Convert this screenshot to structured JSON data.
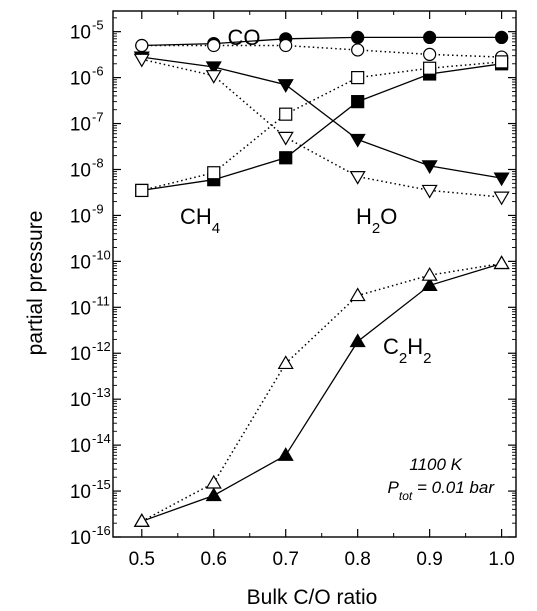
{
  "chart_data": {
    "type": "line",
    "xlabel": "Bulk C/O ratio",
    "ylabel": "partial pressure",
    "y_scale": "log",
    "xlim": [
      0.46,
      1.02
    ],
    "ylim_exponent": [
      -16,
      -4.55
    ],
    "x_ticks": [
      "0.5",
      "0.6",
      "0.7",
      "0.8",
      "0.9",
      "1.0"
    ],
    "y_tick_exponents": [
      "-5",
      "-6",
      "-7",
      "-8",
      "-9",
      "-10",
      "-11",
      "-12",
      "-13",
      "-14",
      "-15",
      "-16"
    ],
    "grid": false,
    "annotations": {
      "temperature": "1100 K",
      "pressure_symbol": "P",
      "pressure_subscript": "tot",
      "pressure_value": " = 0.01 bar"
    },
    "x": [
      0.5,
      0.6,
      0.7,
      0.8,
      0.9,
      1.0
    ],
    "series": [
      {
        "label_main": "CO",
        "label_sub": "",
        "label_tail": "",
        "marker": "circle",
        "filled": true,
        "line": "solid",
        "values": [
          5e-06,
          5.5e-06,
          7e-06,
          7.5e-06,
          7.5e-06,
          7.5e-06
        ]
      },
      {
        "label_main": "",
        "label_sub": "",
        "label_tail": "",
        "marker": "circle",
        "filled": false,
        "line": "dotted",
        "values": [
          5e-06,
          5e-06,
          5e-06,
          4e-06,
          3.2e-06,
          2.8e-06
        ]
      },
      {
        "label_main": "CH",
        "label_sub": "4",
        "label_tail": "",
        "marker": "square",
        "filled": true,
        "line": "solid",
        "values": [
          3.5e-09,
          6e-09,
          1.8e-08,
          3e-07,
          1.2e-06,
          2e-06
        ]
      },
      {
        "label_main": "",
        "label_sub": "",
        "label_tail": "",
        "marker": "square",
        "filled": false,
        "line": "dotted",
        "values": [
          3.5e-09,
          8.5e-09,
          1.6e-07,
          1e-06,
          1.6e-06,
          2.2e-06
        ]
      },
      {
        "label_main": "H",
        "label_sub": "2",
        "label_tail": "O",
        "marker": "triangle-down",
        "filled": true,
        "line": "solid",
        "values": [
          2.8e-06,
          1.7e-06,
          7e-07,
          4.5e-08,
          1.2e-08,
          6.5e-09
        ]
      },
      {
        "label_main": "",
        "label_sub": "",
        "label_tail": "",
        "marker": "triangle-down",
        "filled": false,
        "line": "dotted",
        "values": [
          2.5e-06,
          1.1e-06,
          5e-08,
          7e-09,
          3.5e-09,
          2.5e-09
        ]
      },
      {
        "label_main": "C",
        "label_sub": "2",
        "label_tail": "H",
        "label_sub2": "2",
        "marker": "triangle-up",
        "filled": true,
        "line": "solid",
        "values": [
          2.2e-16,
          8e-16,
          6e-15,
          1.8e-12,
          3e-11,
          9e-11
        ]
      },
      {
        "label_main": "",
        "label_sub": "",
        "label_tail": "",
        "marker": "triangle-up",
        "filled": false,
        "line": "dotted",
        "values": [
          2.2e-16,
          1.5e-15,
          6e-13,
          1.8e-11,
          5e-11,
          9e-11
        ]
      }
    ]
  }
}
